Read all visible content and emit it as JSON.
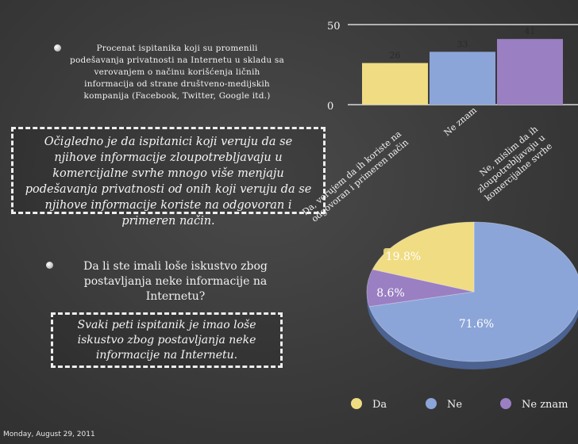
{
  "chart_data": [
    {
      "type": "bar",
      "categories": [
        "Da, verujem da ih koriste na odgovoran i primeren način",
        "Ne znam",
        "Ne, mislim da ih zloupotrebljavaju u komercijalne svrhe"
      ],
      "category_lines": [
        [
          "Da, verujem da ih koriste na",
          "odgovoran i primeren način"
        ],
        [
          "Ne znam"
        ],
        [
          "Ne, mislim da ih",
          "zloupotrebljavaju u",
          "komercijalne svrhe"
        ]
      ],
      "values": [
        26,
        33,
        41
      ],
      "value_labels": [
        "26",
        "33",
        "41"
      ],
      "colors": [
        "#f0dc82",
        "#8ba5d8",
        "#9a7fc3"
      ],
      "ylim": [
        0,
        50
      ],
      "y_tick_labels": [
        "0",
        "50"
      ],
      "title": "",
      "xlabel": "",
      "ylabel": ""
    },
    {
      "type": "pie",
      "categories": [
        "Da",
        "Ne",
        "Ne znam"
      ],
      "values": [
        19.8,
        71.6,
        8.6
      ],
      "value_labels": [
        "19.8%",
        "71.6%",
        "8.6%"
      ],
      "colors": [
        "#f0dc82",
        "#8ba5d8",
        "#9a7fc3"
      ],
      "legend": "bottom",
      "title": ""
    }
  ],
  "question1": "Procenat ispitanika koji su promenili podešavanja privatnosti na Internetu u skladu sa verovanjem o načinu korišćenja ličnih informacija od strane društveno-medijskih kompanija (Facebook, Twitter, Google itd.)",
  "conclusion1": "Očigledno je da ispitanici koji veruju da se njihove informacije zloupotrebljavaju u komercijalne svrhe mnogo više menjaju podešavanja privatnosti od onih koji veruju da se njihove informacije koriste na odgovoran i primeren način.",
  "question2": "Da li ste imali loše iskustvo zbog postavljanja neke informacije na Internetu?",
  "conclusion2": "Svaki peti ispitanik je imao loše iskustvo zbog postavljanja neke informacije na Internetu.",
  "footer_date": "Monday, August 29, 2011"
}
